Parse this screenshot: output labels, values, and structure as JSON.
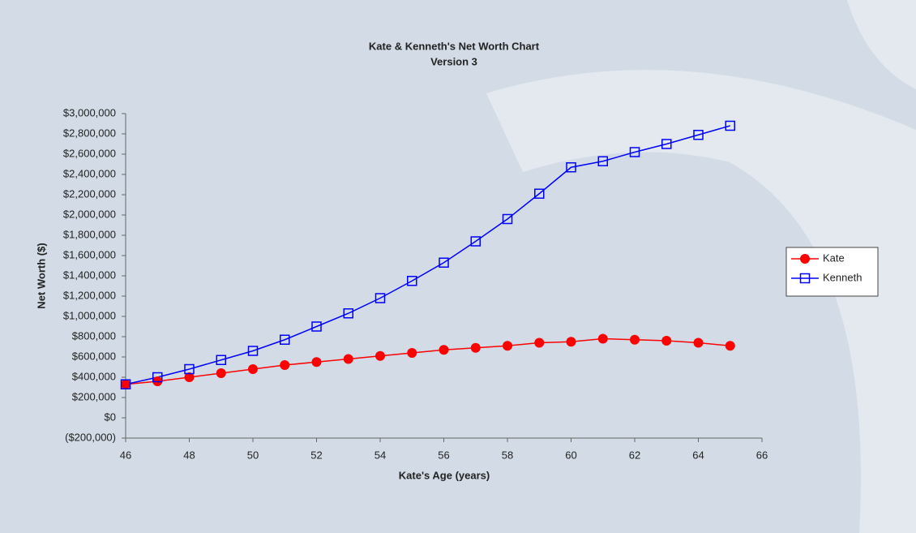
{
  "chart_data": {
    "type": "line",
    "title": "Kate & Kenneth's Net Worth Chart",
    "subtitle": "Version 3",
    "x_label": "Kate's Age (years)",
    "y_label": "Net Worth ($)",
    "x": [
      46,
      47,
      48,
      49,
      50,
      51,
      52,
      53,
      54,
      55,
      56,
      57,
      58,
      59,
      60,
      61,
      62,
      63,
      64,
      65
    ],
    "series": [
      {
        "name": "Kate",
        "color": "#ff0000",
        "marker": "circle",
        "values": [
          330000,
          360000,
          400000,
          440000,
          480000,
          520000,
          550000,
          580000,
          610000,
          640000,
          670000,
          690000,
          710000,
          740000,
          750000,
          780000,
          770000,
          760000,
          740000,
          710000
        ]
      },
      {
        "name": "Kenneth",
        "color": "#0000ff",
        "marker": "square",
        "values": [
          330000,
          400000,
          480000,
          570000,
          660000,
          770000,
          900000,
          1030000,
          1180000,
          1350000,
          1530000,
          1740000,
          1960000,
          2210000,
          2470000,
          2530000,
          2620000,
          2700000,
          2790000,
          2880000
        ]
      }
    ],
    "xlim": [
      46,
      66
    ],
    "xticks": [
      46,
      48,
      50,
      52,
      54,
      56,
      58,
      60,
      62,
      64,
      66
    ],
    "ylim": [
      -200000,
      3000000
    ],
    "yticks": [
      {
        "value": -200000,
        "label": "($200,000)"
      },
      {
        "value": 0,
        "label": "$0"
      },
      {
        "value": 200000,
        "label": "$200,000"
      },
      {
        "value": 400000,
        "label": "$400,000"
      },
      {
        "value": 600000,
        "label": "$600,000"
      },
      {
        "value": 800000,
        "label": "$800,000"
      },
      {
        "value": 1000000,
        "label": "$1,000,000"
      },
      {
        "value": 1200000,
        "label": "$1,200,000"
      },
      {
        "value": 1400000,
        "label": "$1,400,000"
      },
      {
        "value": 1600000,
        "label": "$1,600,000"
      },
      {
        "value": 1800000,
        "label": "$1,800,000"
      },
      {
        "value": 2000000,
        "label": "$2,000,000"
      },
      {
        "value": 2200000,
        "label": "$2,200,000"
      },
      {
        "value": 2400000,
        "label": "$2,400,000"
      },
      {
        "value": 2600000,
        "label": "$2,600,000"
      },
      {
        "value": 2800000,
        "label": "$2,800,000"
      },
      {
        "value": 3000000,
        "label": "$3,000,000"
      }
    ],
    "legend": "right"
  }
}
